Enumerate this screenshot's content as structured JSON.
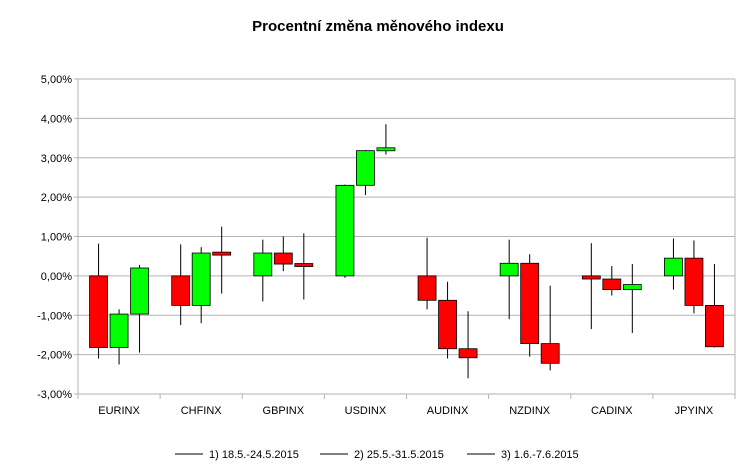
{
  "chart_data": {
    "type": "candlestick",
    "title": "Procentní změna měnového indexu",
    "categories": [
      "EURINX",
      "CHFINX",
      "GBPINX",
      "USDINX",
      "AUDINX",
      "NZDINX",
      "CADINX",
      "JPYINX"
    ],
    "ylim": [
      -3.0,
      5.0
    ],
    "yticks": [
      5.0,
      4.0,
      3.0,
      2.0,
      1.0,
      0.0,
      -1.0,
      -2.0,
      -3.0
    ],
    "ytick_labels": [
      "5,00%",
      "4,00%",
      "3,00%",
      "2,00%",
      "1,00%",
      "0,00%",
      "-1,00%",
      "-2,00%",
      "-3,00%"
    ],
    "grid": true,
    "legend_position": "bottom",
    "up_color": "#00ff00",
    "down_color": "#ff0000",
    "series": [
      {
        "name": "1) 18.5.-24.5.2015",
        "candles": [
          {
            "open": 0.0,
            "close": -1.82,
            "high": 0.82,
            "low": -2.1
          },
          {
            "open": 0.0,
            "close": -0.75,
            "high": 0.8,
            "low": -1.25
          },
          {
            "open": 0.0,
            "close": 0.58,
            "high": 0.92,
            "low": -0.65
          },
          {
            "open": 0.0,
            "close": 2.3,
            "high": 2.32,
            "low": -0.05
          },
          {
            "open": 0.0,
            "close": -0.62,
            "high": 0.97,
            "low": -0.85
          },
          {
            "open": 0.0,
            "close": 0.32,
            "high": 0.92,
            "low": -1.1
          },
          {
            "open": 0.0,
            "close": -0.08,
            "high": 0.83,
            "low": -1.35
          },
          {
            "open": 0.0,
            "close": 0.45,
            "high": 0.95,
            "low": -0.35
          }
        ]
      },
      {
        "name": "2) 25.5.-31.5.2015",
        "candles": [
          {
            "open": -1.82,
            "close": -0.97,
            "high": -0.85,
            "low": -2.25
          },
          {
            "open": -0.75,
            "close": 0.58,
            "high": 0.73,
            "low": -1.2
          },
          {
            "open": 0.58,
            "close": 0.3,
            "high": 1.0,
            "low": 0.12
          },
          {
            "open": 2.3,
            "close": 3.18,
            "high": 3.2,
            "low": 2.05
          },
          {
            "open": -0.62,
            "close": -1.85,
            "high": -0.15,
            "low": -2.1
          },
          {
            "open": 0.32,
            "close": -1.72,
            "high": 0.55,
            "low": -2.05
          },
          {
            "open": -0.08,
            "close": -0.35,
            "high": 0.25,
            "low": -0.5
          },
          {
            "open": 0.45,
            "close": -0.75,
            "high": 0.9,
            "low": -0.95
          }
        ]
      },
      {
        "name": "3) 1.6.-7.6.2015",
        "candles": [
          {
            "open": -0.97,
            "close": 0.2,
            "high": 0.28,
            "low": -1.95
          },
          {
            "open": 0.58,
            "close": 0.55,
            "high": 1.25,
            "low": -0.45
          },
          {
            "open": 0.3,
            "close": 0.25,
            "high": 1.08,
            "low": -0.6
          },
          {
            "open": 3.18,
            "close": 3.25,
            "high": 3.85,
            "low": 3.08
          },
          {
            "open": -1.85,
            "close": -2.08,
            "high": -0.9,
            "low": -2.6
          },
          {
            "open": -1.72,
            "close": -2.22,
            "high": -0.25,
            "low": -2.4
          },
          {
            "open": -0.35,
            "close": -0.22,
            "high": 0.3,
            "low": -1.45
          },
          {
            "open": -0.75,
            "close": -1.8,
            "high": 0.3,
            "low": -1.82
          }
        ]
      }
    ]
  }
}
